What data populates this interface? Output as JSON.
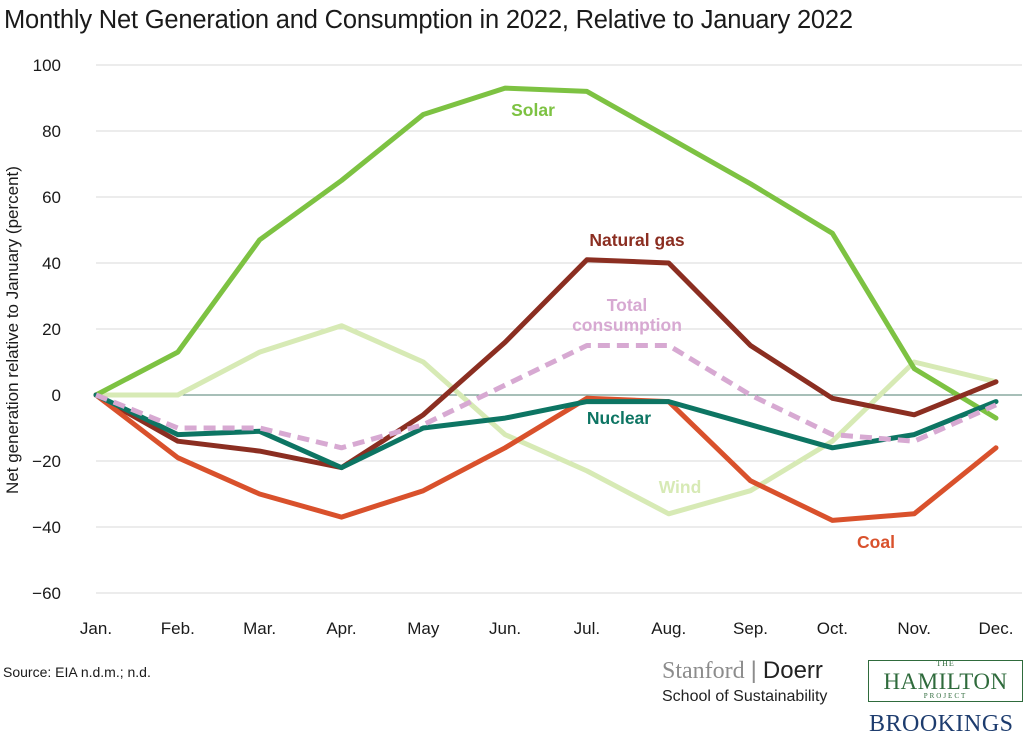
{
  "chart_data": {
    "type": "line",
    "title": "Monthly Net Generation and Consumption in 2022, Relative to January 2022",
    "xlabel": "",
    "ylabel": "Net generation relative to January (percent)",
    "categories": [
      "Jan.",
      "Feb.",
      "Mar.",
      "Apr.",
      "May",
      "Jun.",
      "Jul.",
      "Aug.",
      "Sep.",
      "Oct.",
      "Nov.",
      "Dec."
    ],
    "ylim": [
      -60,
      100
    ],
    "yticks": [
      -60,
      -40,
      -20,
      0,
      20,
      40,
      60,
      80,
      100
    ],
    "grid": "horizontal",
    "legend": "direct-labels",
    "series": [
      {
        "name": "Wind",
        "color": "#d7eab5",
        "dashed": false,
        "label_lines": [
          "Wind"
        ],
        "values": [
          0,
          0,
          13,
          21,
          10,
          -12,
          -23,
          -36,
          -29,
          -14,
          10,
          4
        ]
      },
      {
        "name": "Solar",
        "color": "#7dc242",
        "dashed": false,
        "label_lines": [
          "Solar"
        ],
        "values": [
          0,
          13,
          47,
          65,
          85,
          93,
          92,
          78,
          64,
          49,
          8,
          -7
        ]
      },
      {
        "name": "Natural gas",
        "color": "#8b2e21",
        "dashed": false,
        "label_lines": [
          "Natural gas"
        ],
        "values": [
          0,
          -14,
          -17,
          -22,
          -6,
          16,
          41,
          40,
          15,
          -1,
          -6,
          4
        ]
      },
      {
        "name": "Coal",
        "color": "#d9512c",
        "dashed": false,
        "label_lines": [
          "Coal"
        ],
        "values": [
          0,
          -19,
          -30,
          -37,
          -29,
          -16,
          -1,
          -2,
          -26,
          -38,
          -36,
          -16
        ]
      },
      {
        "name": "Nuclear",
        "color": "#0d7563",
        "dashed": false,
        "label_lines": [
          "Nuclear"
        ],
        "values": [
          0,
          -12,
          -11,
          -22,
          -10,
          -7,
          -2,
          -2,
          -9,
          -16,
          -12,
          -2
        ]
      },
      {
        "name": "Total consumption",
        "color": "#d7a9d2",
        "dashed": true,
        "label_lines": [
          "Total",
          "consumption"
        ],
        "values": [
          0,
          -10,
          -10,
          -16,
          -9,
          3,
          15,
          15,
          0,
          -12,
          -14,
          -3
        ]
      }
    ]
  },
  "source": "Source: EIA n.d.m.; n.d.",
  "logos": {
    "stanford": "Stanford",
    "doerr": "Doerr",
    "school": "School of Sustainability",
    "hamilton_the": "THE",
    "hamilton_main": "HAMILTON",
    "hamilton_project": "PROJECT",
    "brookings": "BROOKINGS"
  }
}
